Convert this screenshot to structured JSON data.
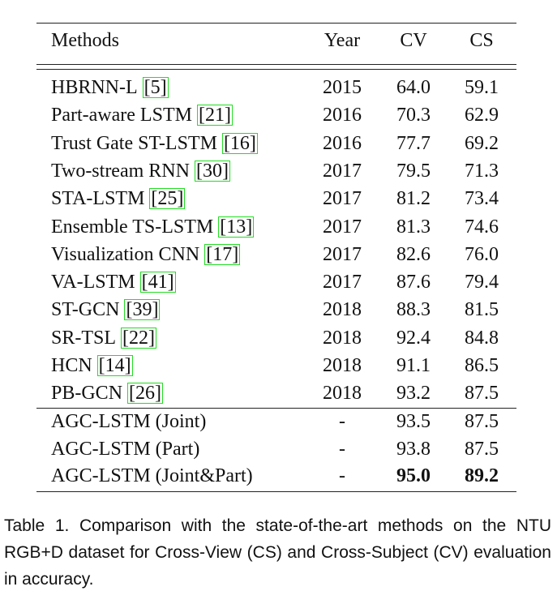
{
  "table": {
    "header": [
      "Methods",
      "Year",
      "CV",
      "CS"
    ],
    "rows": [
      {
        "method": "HBRNN-L",
        "cite": "[5]",
        "year": "2015",
        "cv": "64.0",
        "cs": "59.1"
      },
      {
        "method": "Part-aware LSTM",
        "cite": "[21]",
        "year": "2016",
        "cv": "70.3",
        "cs": "62.9"
      },
      {
        "method": "Trust Gate ST-LSTM",
        "cite": "[16]",
        "year": "2016",
        "cv": "77.7",
        "cs": "69.2"
      },
      {
        "method": "Two-stream RNN",
        "cite": "[30]",
        "year": "2017",
        "cv": "79.5",
        "cs": "71.3"
      },
      {
        "method": "STA-LSTM",
        "cite": "[25]",
        "year": "2017",
        "cv": "81.2",
        "cs": "73.4"
      },
      {
        "method": "Ensemble TS-LSTM",
        "cite": "[13]",
        "year": "2017",
        "cv": "81.3",
        "cs": "74.6"
      },
      {
        "method": "Visualization CNN",
        "cite": "[17]",
        "year": "2017",
        "cv": "82.6",
        "cs": "76.0"
      },
      {
        "method": "VA-LSTM",
        "cite": "[41]",
        "year": "2017",
        "cv": "87.6",
        "cs": "79.4"
      },
      {
        "method": "ST-GCN",
        "cite": "[39]",
        "year": "2018",
        "cv": "88.3",
        "cs": "81.5"
      },
      {
        "method": "SR-TSL",
        "cite": "[22]",
        "year": "2018",
        "cv": "92.4",
        "cs": "84.8"
      },
      {
        "method": "HCN",
        "cite": "[14]",
        "year": "2018",
        "cv": "91.1",
        "cs": "86.5"
      },
      {
        "method": "PB-GCN",
        "cite": "[26]",
        "year": "2018",
        "cv": "93.2",
        "cs": "87.5"
      }
    ],
    "ours": [
      {
        "method": "AGC-LSTM (Joint)",
        "year": "-",
        "cv": "93.5",
        "cs": "87.5"
      },
      {
        "method": "AGC-LSTM (Part)",
        "year": "-",
        "cv": "93.8",
        "cs": "87.5"
      },
      {
        "method": "AGC-LSTM (Joint&Part)",
        "year": "-",
        "cv": "95.0",
        "cs": "89.2",
        "bold": true
      }
    ]
  },
  "caption": "Table 1. Comparison with the state-of-the-art methods on the NTU RGB+D dataset for Cross-View (CS) and Cross-Subject (CV) evaluation in accuracy."
}
